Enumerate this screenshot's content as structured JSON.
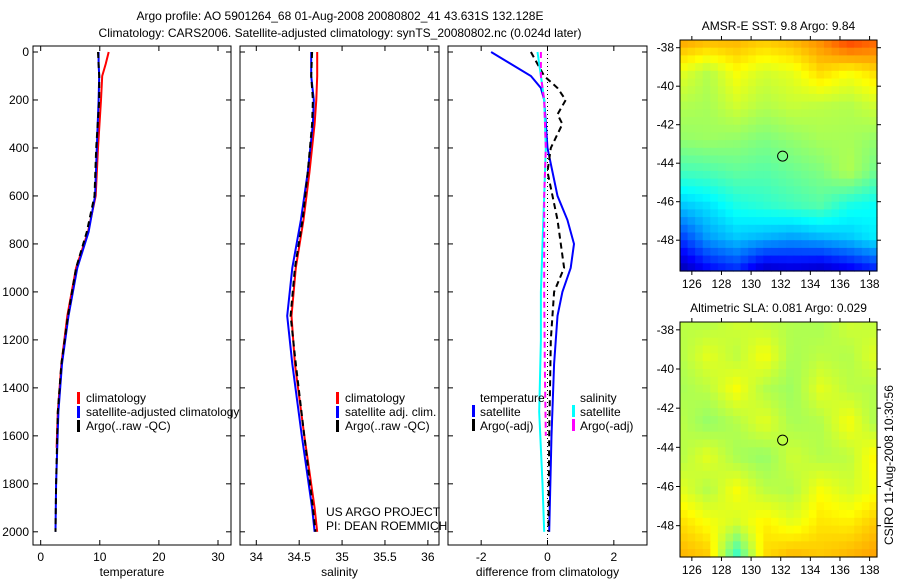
{
  "title_line1": "Argo profile: AO 5901264_68 01-Aug-2008 20080802_41 43.631S 132.128E",
  "title_line2": "Climatology: CARS2006. Satellite-adjusted climatology: synTS_20080802.nc (0.024d later)",
  "credit": {
    "project": "US ARGO PROJECT",
    "pi": "PI: DEAN ROEMMICH"
  },
  "stamp": "CSIRO 11-Aug-2008 10:30:56",
  "colors": {
    "red": "#ff0000",
    "blue": "#0000ff",
    "black": "#000000",
    "cyan": "#00ffff",
    "magenta": "#ff00ff"
  },
  "chart_data": [
    {
      "type": "line",
      "id": "temp",
      "xlabel": "temperature",
      "ylabel": "",
      "xlim": [
        -1.3,
        32.2
      ],
      "ylim": [
        2055,
        -25
      ],
      "xticks": [
        0,
        10,
        20,
        30
      ],
      "yticks": [
        0,
        200,
        400,
        600,
        800,
        1000,
        1200,
        1400,
        1600,
        1800,
        2000
      ],
      "legend": [
        "climatology",
        "satellite-adjusted climatology",
        "Argo(..raw -QC)"
      ],
      "series": [
        {
          "name": "climatology",
          "color": "#ff0000",
          "dash": false,
          "depth": [
            0,
            50,
            100,
            200,
            400,
            600,
            750,
            900,
            1100,
            1300,
            1500,
            1650
          ],
          "values": [
            11.5,
            11,
            10.4,
            10.2,
            9.7,
            9.3,
            8,
            6,
            4.5,
            3.5,
            2.9,
            2.7
          ]
        },
        {
          "name": "satellite-adjusted climatology",
          "color": "#0000ff",
          "dash": false,
          "depth": [
            0,
            50,
            100,
            200,
            400,
            600,
            750,
            900,
            1100,
            1300,
            1500,
            1800,
            2000
          ],
          "values": [
            9.8,
            9.8,
            9.9,
            9.8,
            9.5,
            9.2,
            8.1,
            6.2,
            4.7,
            3.6,
            3,
            2.6,
            2.5
          ]
        },
        {
          "name": "Argo(..raw -QC)",
          "color": "#000000",
          "dash": true,
          "depth": [
            0,
            50,
            100,
            200,
            400,
            600,
            750,
            900,
            1100,
            1300,
            1500,
            1800,
            2000
          ],
          "values": [
            9.7,
            9.8,
            9.9,
            9.9,
            9.4,
            9.1,
            7.8,
            6,
            4.6,
            3.5,
            2.9,
            2.6,
            2.5
          ]
        }
      ]
    },
    {
      "type": "line",
      "id": "sal",
      "xlabel": "salinity",
      "ylabel": "",
      "xlim": [
        33.81,
        36.13
      ],
      "ylim": [
        2055,
        -25
      ],
      "xticks": [
        34,
        34.5,
        35,
        35.5,
        36
      ],
      "xticklabels": [
        "34",
        "34.5",
        "35",
        "35.5",
        "36"
      ],
      "legend": [
        "climatology",
        "satellite adj. clim.",
        "Argo(..raw -QC)"
      ],
      "series": [
        {
          "name": "climatology",
          "color": "#ff0000",
          "dash": false,
          "depth": [
            0,
            100,
            200,
            300,
            500,
            700,
            900,
            1100,
            1300,
            1600,
            1900,
            2000
          ],
          "values": [
            34.71,
            34.71,
            34.7,
            34.68,
            34.62,
            34.55,
            34.46,
            34.41,
            34.45,
            34.56,
            34.68,
            34.71
          ]
        },
        {
          "name": "satellite adj. clim.",
          "color": "#0000ff",
          "dash": false,
          "depth": [
            0,
            100,
            200,
            300,
            500,
            700,
            900,
            1100,
            1300,
            1600,
            1900,
            2000
          ],
          "values": [
            34.64,
            34.64,
            34.67,
            34.66,
            34.6,
            34.52,
            34.42,
            34.36,
            34.42,
            34.53,
            34.65,
            34.68
          ]
        },
        {
          "name": "Argo(..raw -QC)",
          "color": "#000000",
          "dash": true,
          "depth": [
            0,
            100,
            200,
            300,
            500,
            700,
            900,
            1100,
            1300,
            1600,
            1900,
            2000
          ],
          "values": [
            34.65,
            34.64,
            34.66,
            34.65,
            34.6,
            34.54,
            34.45,
            34.4,
            34.46,
            34.56,
            34.66,
            34.69
          ]
        }
      ]
    },
    {
      "type": "line",
      "id": "diff",
      "xlabel": "difference from climatology",
      "ylabel": "",
      "xlim": [
        -3,
        3
      ],
      "ylim": [
        2055,
        -25
      ],
      "xticks": [
        -2,
        0,
        2
      ],
      "legend_titles": [
        "temperature",
        "salinity"
      ],
      "legend": [
        "satellite",
        "Argo(-adj)",
        "satellite",
        "Argo(-adj)"
      ],
      "series": [
        {
          "name": "temperature satellite",
          "color": "#0000ff",
          "dash": false,
          "depth": [
            0,
            50,
            100,
            150,
            200,
            400,
            600,
            700,
            800,
            900,
            1000,
            1100,
            1300,
            1600,
            2000
          ],
          "values": [
            -1.7,
            -1.1,
            -0.5,
            -0.2,
            -0.1,
            0,
            0.3,
            0.6,
            0.8,
            0.7,
            0.45,
            0.3,
            0.2,
            0.12,
            0.05
          ]
        },
        {
          "name": "temperature Argo(-adj)",
          "color": "#000000",
          "dash": true,
          "depth": [
            0,
            50,
            100,
            150,
            200,
            260,
            300,
            400,
            500,
            700,
            800,
            900,
            1000,
            1200,
            1600,
            2000
          ],
          "values": [
            -0.5,
            -0.3,
            -0.1,
            0.3,
            0.55,
            0.3,
            0.45,
            0.1,
            0,
            0.3,
            0.4,
            0.5,
            0.2,
            0.1,
            0.05,
            0.03
          ]
        },
        {
          "name": "salinity satellite",
          "color": "#00ffff",
          "dash": false,
          "depth": [
            0,
            100,
            200,
            400,
            600,
            800,
            1000,
            1200,
            1500,
            1800,
            2000
          ],
          "values": [
            -0.3,
            -0.2,
            -0.1,
            -0.05,
            -0.1,
            -0.15,
            -0.2,
            -0.2,
            -0.25,
            -0.15,
            -0.1
          ]
        },
        {
          "name": "salinity Argo(-adj)",
          "color": "#ff00ff",
          "dash": true,
          "depth": [
            0,
            100,
            200,
            400,
            600,
            800,
            1000,
            1300,
            1600
          ],
          "values": [
            -0.2,
            -0.2,
            -0.1,
            -0.05,
            -0.1,
            -0.1,
            -0.1,
            -0.08,
            -0.05
          ]
        }
      ]
    },
    {
      "type": "heatmap",
      "id": "sst",
      "title": "AMSR-E SST: 9.8 Argo: 9.84",
      "xlim": [
        125.2,
        138.5
      ],
      "ylim": [
        -49.6,
        -37.6
      ],
      "xticks": [
        126,
        128,
        130,
        132,
        134,
        136,
        138
      ],
      "yticks": [
        -38,
        -40,
        -42,
        -44,
        -46,
        -48
      ],
      "marker": {
        "lon": 132.128,
        "lat": -43.631
      },
      "grid_lats": [
        -37.6,
        -39.3,
        -41,
        -42.7,
        -44.4,
        -46.1,
        -47.8,
        -49.6
      ],
      "grid_lons": [
        125.2,
        127.1,
        129,
        130.9,
        132.8,
        134.7,
        136.6,
        138.5
      ],
      "values": [
        [
          0.72,
          0.7,
          0.7,
          0.68,
          0.7,
          0.74,
          0.82,
          0.78
        ],
        [
          0.6,
          0.55,
          0.62,
          0.58,
          0.6,
          0.66,
          0.62,
          0.66
        ],
        [
          0.55,
          0.54,
          0.58,
          0.55,
          0.57,
          0.56,
          0.55,
          0.58
        ],
        [
          0.52,
          0.53,
          0.52,
          0.5,
          0.52,
          0.54,
          0.54,
          0.52
        ],
        [
          0.44,
          0.45,
          0.47,
          0.46,
          0.48,
          0.5,
          0.55,
          0.48
        ],
        [
          0.32,
          0.35,
          0.4,
          0.42,
          0.44,
          0.46,
          0.4,
          0.38
        ],
        [
          0.18,
          0.28,
          0.32,
          0.3,
          0.28,
          0.3,
          0.32,
          0.36
        ],
        [
          0.04,
          0.12,
          0.16,
          0.06,
          0.08,
          0.06,
          0.1,
          0.15
        ]
      ]
    },
    {
      "type": "heatmap",
      "id": "sla",
      "title": "Altimetric SLA: 0.081 Argo: 0.029",
      "xlim": [
        125.2,
        138.5
      ],
      "ylim": [
        -49.6,
        -37.6
      ],
      "xticks": [
        126,
        128,
        130,
        132,
        134,
        136,
        138
      ],
      "yticks": [
        -38,
        -40,
        -42,
        -44,
        -46,
        -48
      ],
      "marker": {
        "lon": 132.128,
        "lat": -43.631
      },
      "grid_lats": [
        -37.6,
        -39.3,
        -41,
        -42.7,
        -44.4,
        -46.1,
        -47.8,
        -49.6
      ],
      "grid_lons": [
        125.2,
        127.1,
        129,
        130.9,
        132.8,
        134.7,
        136.6,
        138.5
      ],
      "values": [
        [
          0.56,
          0.55,
          0.58,
          0.56,
          0.55,
          0.54,
          0.58,
          0.56
        ],
        [
          0.55,
          0.6,
          0.56,
          0.62,
          0.54,
          0.56,
          0.55,
          0.6
        ],
        [
          0.54,
          0.56,
          0.62,
          0.55,
          0.53,
          0.6,
          0.56,
          0.55
        ],
        [
          0.56,
          0.52,
          0.55,
          0.6,
          0.54,
          0.55,
          0.62,
          0.54
        ],
        [
          0.55,
          0.6,
          0.54,
          0.52,
          0.58,
          0.55,
          0.56,
          0.64
        ],
        [
          0.6,
          0.55,
          0.62,
          0.56,
          0.55,
          0.62,
          0.58,
          0.62
        ],
        [
          0.66,
          0.62,
          0.58,
          0.64,
          0.6,
          0.65,
          0.64,
          0.68
        ],
        [
          0.7,
          0.68,
          0.42,
          0.66,
          0.7,
          0.68,
          0.7,
          0.72
        ]
      ]
    }
  ]
}
